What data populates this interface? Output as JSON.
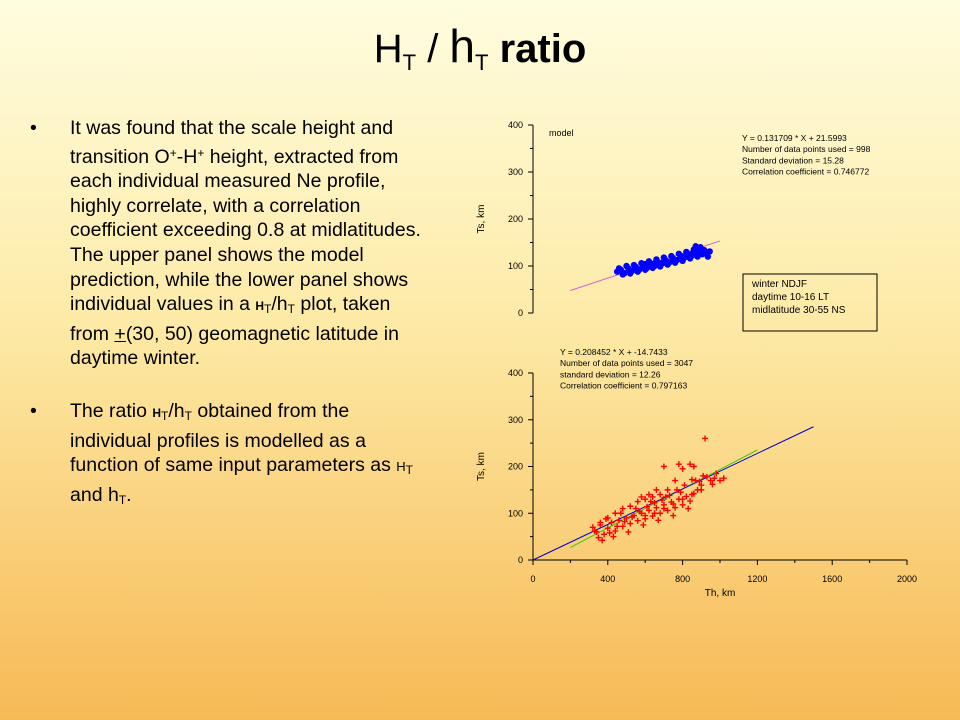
{
  "slide": {
    "title_H": "H",
    "title_H_sub": "T",
    "title_slash": " / ",
    "title_h": "h",
    "title_h_sub": "T",
    "title_tail": " ratio",
    "bullet1": {
      "t1": "It was found that the scale height and transition O",
      "sup1": "+",
      "t2": "-H",
      "sup2": "+",
      "t3": " height, extracted from each individual measured Ne profile, highly correlate, with a correlation coefficient exceeding 0.8 at midlatitudes. The upper panel shows the model prediction, while the lower panel shows individual values in a ",
      "H": "H",
      "Hsub": "T",
      "slash": "/h",
      "hsub": "T",
      "t4": " plot, taken from ",
      "pm": "+",
      "t5": "(30, 50) geomagnetic latitude in daytime winter."
    },
    "bullet2": {
      "t1": "The ratio ",
      "H": "H",
      "Hsub": "T",
      "slash": "/h",
      "hsub": "T",
      "t2": " obtained from the individual profiles is modelled as a function of same input parameters as ",
      "H2": "H",
      "H2sub": "T",
      "and": " and h",
      "h2sub": "T",
      "end": "."
    }
  },
  "chart_data": [
    {
      "type": "scatter",
      "panel": "upper",
      "panel_label": "model",
      "ylabel": "Ts, km",
      "xlim": [
        0,
        2000
      ],
      "ylim": [
        0,
        400
      ],
      "yticks": [
        0,
        100,
        200,
        300,
        400
      ],
      "color": "#0000ff",
      "regression_text": [
        "Y = 0.131709 * X + 21.5993",
        "Number of data points used = 998",
        "Standard deviation = 15.28",
        "Correlation coefficient = 0.746772"
      ],
      "fit": {
        "slope": 0.131709,
        "intercept": 21.5993,
        "x_range": [
          200,
          1000
        ],
        "color": "#cc66cc"
      },
      "legend_box": [
        "winter NDJF",
        "daytime 10-16 LT",
        "midlatitude 30-55 NS"
      ],
      "points": [
        [
          450,
          88
        ],
        [
          470,
          92
        ],
        [
          490,
          85
        ],
        [
          510,
          95
        ],
        [
          530,
          90
        ],
        [
          550,
          98
        ],
        [
          570,
          93
        ],
        [
          590,
          100
        ],
        [
          610,
          96
        ],
        [
          630,
          104
        ],
        [
          650,
          100
        ],
        [
          670,
          108
        ],
        [
          690,
          105
        ],
        [
          710,
          112
        ],
        [
          730,
          108
        ],
        [
          750,
          116
        ],
        [
          770,
          113
        ],
        [
          790,
          120
        ],
        [
          810,
          118
        ],
        [
          830,
          125
        ],
        [
          850,
          122
        ],
        [
          870,
          128
        ],
        [
          890,
          126
        ],
        [
          900,
          132
        ],
        [
          460,
          95
        ],
        [
          480,
          82
        ],
        [
          500,
          100
        ],
        [
          520,
          84
        ],
        [
          540,
          102
        ],
        [
          560,
          88
        ],
        [
          580,
          106
        ],
        [
          600,
          92
        ],
        [
          620,
          110
        ],
        [
          640,
          96
        ],
        [
          660,
          114
        ],
        [
          680,
          99
        ],
        [
          700,
          118
        ],
        [
          720,
          103
        ],
        [
          740,
          121
        ],
        [
          760,
          107
        ],
        [
          780,
          126
        ],
        [
          800,
          111
        ],
        [
          820,
          130
        ],
        [
          840,
          116
        ],
        [
          860,
          135
        ],
        [
          880,
          120
        ],
        [
          895,
          140
        ],
        [
          905,
          125
        ],
        [
          915,
          134
        ],
        [
          925,
          128
        ],
        [
          935,
          120
        ],
        [
          945,
          131
        ],
        [
          870,
          142
        ],
        [
          885,
          138
        ],
        [
          600,
          104
        ],
        [
          700,
          110
        ],
        [
          800,
          120
        ],
        [
          650,
          106
        ],
        [
          750,
          114
        ],
        [
          850,
          126
        ]
      ]
    },
    {
      "type": "scatter",
      "panel": "lower",
      "xlabel": "Th, km",
      "ylabel": "Ts, km",
      "xlim": [
        0,
        2000
      ],
      "ylim": [
        0,
        400
      ],
      "xticks": [
        0,
        400,
        800,
        1200,
        1600,
        2000
      ],
      "yticks": [
        0,
        100,
        200,
        300,
        400
      ],
      "color": "#ff0000",
      "regression_text": [
        "Y = 0.208452 * X + -14.7433",
        "Number of data points used = 3047",
        "standard deviation = 12.26",
        "Correlation coefficient = 0.797163"
      ],
      "fits": [
        {
          "slope": 0.208452,
          "intercept": -14.7433,
          "x_range": [
            200,
            1200
          ],
          "color": "#33cc00"
        },
        {
          "slope": 0.19,
          "intercept": 0,
          "x_range": [
            0,
            1500
          ],
          "color": "#0000cc"
        }
      ],
      "points": [
        [
          320,
          70
        ],
        [
          340,
          60
        ],
        [
          360,
          75
        ],
        [
          380,
          55
        ],
        [
          400,
          68
        ],
        [
          420,
          80
        ],
        [
          440,
          62
        ],
        [
          460,
          85
        ],
        [
          480,
          72
        ],
        [
          500,
          90
        ],
        [
          520,
          78
        ],
        [
          540,
          95
        ],
        [
          560,
          84
        ],
        [
          580,
          100
        ],
        [
          600,
          88
        ],
        [
          620,
          106
        ],
        [
          640,
          94
        ],
        [
          660,
          112
        ],
        [
          680,
          100
        ],
        [
          700,
          118
        ],
        [
          720,
          106
        ],
        [
          740,
          124
        ],
        [
          760,
          112
        ],
        [
          780,
          130
        ],
        [
          800,
          118
        ],
        [
          820,
          136
        ],
        [
          840,
          126
        ],
        [
          860,
          142
        ],
        [
          880,
          150
        ],
        [
          900,
          160
        ],
        [
          350,
          48
        ],
        [
          390,
          88
        ],
        [
          430,
          50
        ],
        [
          470,
          100
        ],
        [
          510,
          60
        ],
        [
          550,
          110
        ],
        [
          590,
          75
        ],
        [
          630,
          125
        ],
        [
          670,
          85
        ],
        [
          710,
          135
        ],
        [
          750,
          95
        ],
        [
          790,
          145
        ],
        [
          830,
          110
        ],
        [
          870,
          170
        ],
        [
          910,
          180
        ],
        [
          950,
          170
        ],
        [
          970,
          175
        ],
        [
          980,
          185
        ],
        [
          1000,
          170
        ],
        [
          1020,
          175
        ],
        [
          920,
          260
        ],
        [
          860,
          200
        ],
        [
          840,
          205
        ],
        [
          700,
          200
        ],
        [
          780,
          205
        ],
        [
          800,
          195
        ],
        [
          760,
          170
        ],
        [
          720,
          150
        ],
        [
          680,
          140
        ],
        [
          640,
          135
        ],
        [
          600,
          130
        ],
        [
          560,
          125
        ],
        [
          520,
          115
        ],
        [
          480,
          110
        ],
        [
          440,
          100
        ],
        [
          400,
          90
        ],
        [
          360,
          80
        ],
        [
          330,
          62
        ],
        [
          370,
          42
        ],
        [
          410,
          58
        ],
        [
          450,
          72
        ],
        [
          490,
          82
        ],
        [
          530,
          92
        ],
        [
          570,
          104
        ],
        [
          610,
          114
        ],
        [
          650,
          122
        ],
        [
          690,
          128
        ],
        [
          730,
          138
        ],
        [
          770,
          150
        ],
        [
          810,
          160
        ],
        [
          850,
          172
        ],
        [
          890,
          168
        ],
        [
          930,
          178
        ],
        [
          960,
          162
        ],
        [
          600,
          95
        ],
        [
          650,
          100
        ],
        [
          700,
          110
        ],
        [
          750,
          120
        ],
        [
          800,
          130
        ],
        [
          850,
          140
        ],
        [
          900,
          150
        ],
        [
          620,
          140
        ],
        [
          660,
          150
        ],
        [
          580,
          135
        ]
      ]
    }
  ]
}
